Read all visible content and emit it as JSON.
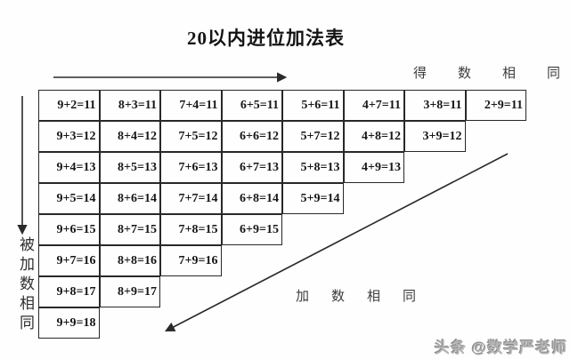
{
  "title": "20以内进位加法表",
  "annotations": {
    "sums_same": "得数相同",
    "addends_same": "加数相同",
    "augend_same": "被加数相同"
  },
  "watermark": "头条 @数学严老师",
  "table": {
    "rows": [
      [
        "9+2=11",
        "8+3=11",
        "7+4=11",
        "6+5=11",
        "5+6=11",
        "4+7=11",
        "3+8=11",
        "2+9=11"
      ],
      [
        "9+3=12",
        "8+4=12",
        "7+5=12",
        "6+6=12",
        "5+7=12",
        "4+8=12",
        "3+9=12"
      ],
      [
        "9+4=13",
        "8+5=13",
        "7+6=13",
        "6+7=13",
        "5+8=13",
        "4+9=13"
      ],
      [
        "9+5=14",
        "8+6=14",
        "7+7=14",
        "6+8=14",
        "5+9=14"
      ],
      [
        "9+6=15",
        "8+7=15",
        "7+8=15",
        "6+9=15"
      ],
      [
        "9+7=16",
        "8+8=16",
        "7+9=16"
      ],
      [
        "9+8=17",
        "8+9=17"
      ],
      [
        "9+9=18"
      ]
    ]
  },
  "colors": {
    "line": "#2a2a2a",
    "cell_text": "#161616",
    "label_text": "#3d3d3d",
    "watermark_text": "#b3b3b3",
    "background": "#fefefe"
  }
}
